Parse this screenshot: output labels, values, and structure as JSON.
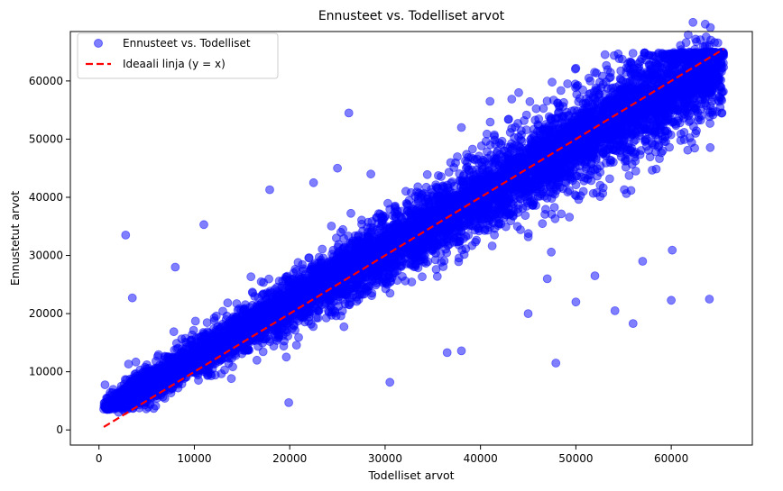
{
  "chart_data": {
    "type": "scatter",
    "title": "Ennusteet vs. Todelliset arvot",
    "xlabel": "Todelliset arvot",
    "ylabel": "Ennustetut arvot",
    "xlim": [
      -3000,
      68500
    ],
    "ylim": [
      -2600,
      68500
    ],
    "xticks": [
      0,
      10000,
      20000,
      30000,
      40000,
      50000,
      60000
    ],
    "xtick_labels": [
      "0",
      "10000",
      "20000",
      "30000",
      "40000",
      "50000",
      "60000"
    ],
    "yticks": [
      0,
      10000,
      20000,
      30000,
      40000,
      50000,
      60000
    ],
    "ytick_labels": [
      "0",
      "10000",
      "20000",
      "30000",
      "40000",
      "50000",
      "60000"
    ],
    "grid": false,
    "legend_position": "top-left",
    "series": [
      {
        "name": "Ennusteet vs. Todelliset",
        "kind": "scatter",
        "color": "#0000ff",
        "alpha": 0.5,
        "marker": "circle",
        "x_range": [
          500,
          65500
        ],
        "y_range": [
          3500,
          65000
        ],
        "outliers": [
          [
            2800,
            33500
          ],
          [
            3500,
            22700
          ],
          [
            11000,
            35300
          ],
          [
            26200,
            54500
          ],
          [
            19900,
            4700
          ],
          [
            30500,
            8200
          ],
          [
            47900,
            11500
          ],
          [
            60000,
            22300
          ],
          [
            64000,
            22500
          ],
          [
            60100,
            30900
          ],
          [
            54100,
            20500
          ],
          [
            50000,
            22000
          ],
          [
            56000,
            18300
          ],
          [
            47000,
            26000
          ],
          [
            36500,
            13300
          ],
          [
            38000,
            13600
          ],
          [
            8000,
            28000
          ],
          [
            17900,
            41300
          ],
          [
            22500,
            42500
          ],
          [
            47500,
            59800
          ],
          [
            50000,
            62200
          ],
          [
            51500,
            60000
          ],
          [
            25000,
            45000
          ],
          [
            28500,
            44000
          ],
          [
            38000,
            52000
          ],
          [
            41000,
            56500
          ],
          [
            44000,
            58000
          ],
          [
            45000,
            20000
          ],
          [
            52000,
            26500
          ],
          [
            57000,
            29000
          ]
        ]
      },
      {
        "name": "Ideaali linja (y = x)",
        "kind": "line",
        "color": "#ff0000",
        "linestyle": "dashed",
        "x": [
          500,
          65500
        ],
        "y": [
          500,
          65500
        ]
      }
    ]
  }
}
